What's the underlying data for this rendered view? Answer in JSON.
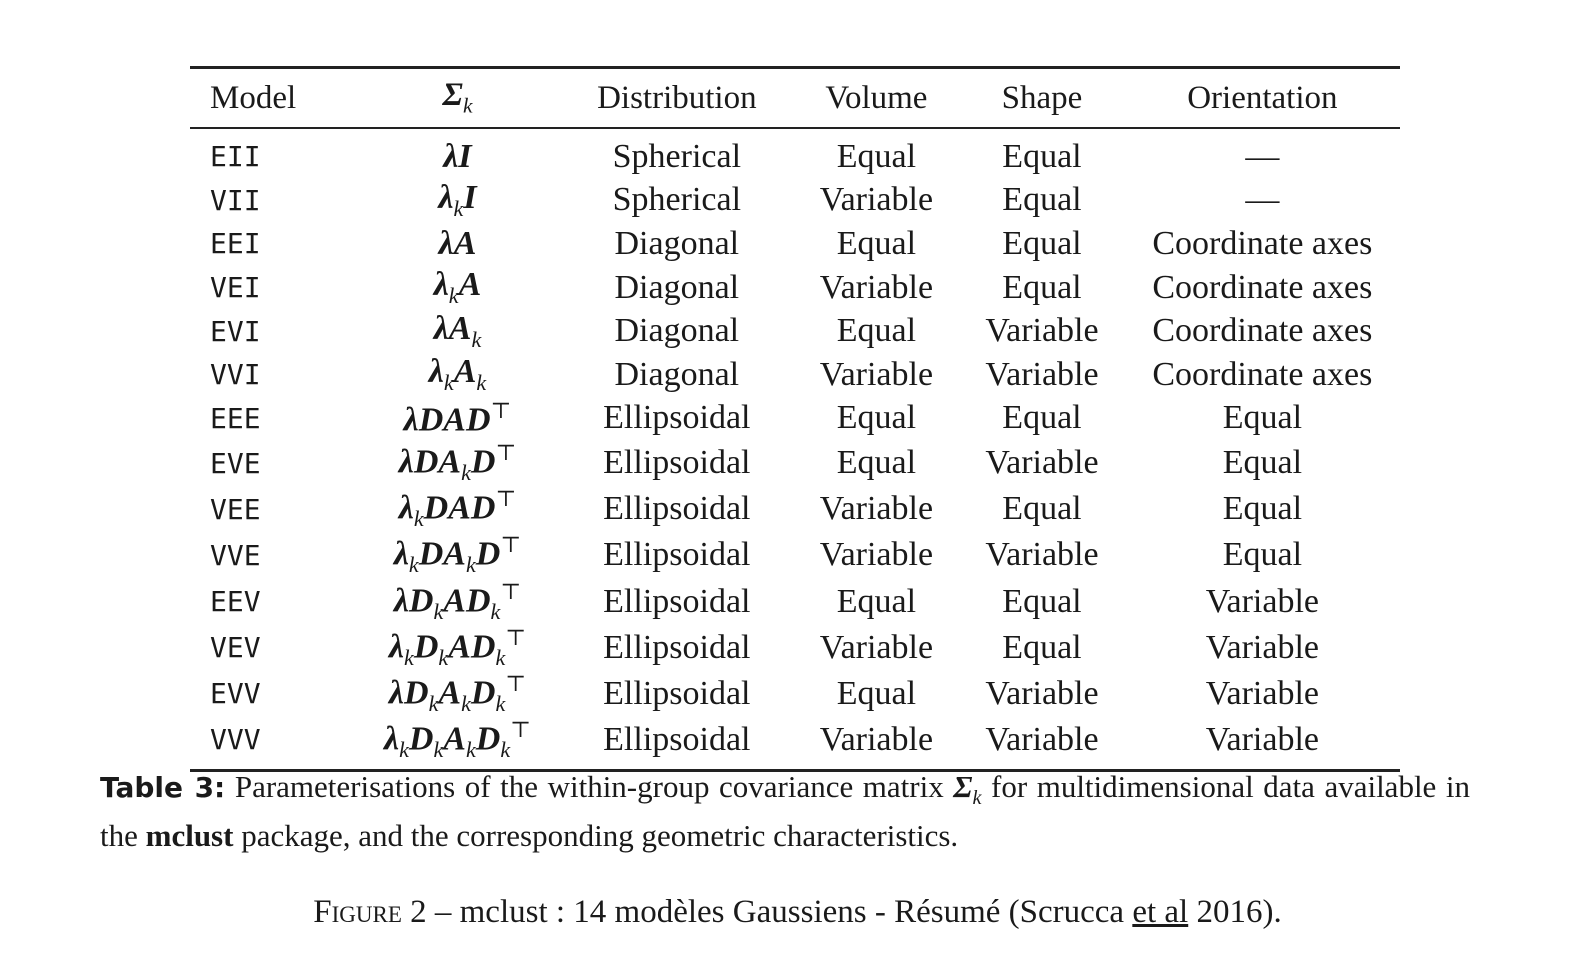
{
  "table": {
    "headers": {
      "model": "Model",
      "sigma": "Σ_k",
      "distribution": "Distribution",
      "volume": "Volume",
      "shape": "Shape",
      "orientation": "Orientation"
    },
    "rows": [
      {
        "model": "EII",
        "sigma": "λI",
        "distribution": "Spherical",
        "volume": "Equal",
        "shape": "Equal",
        "orientation": "—"
      },
      {
        "model": "VII",
        "sigma": "λ_kI",
        "distribution": "Spherical",
        "volume": "Variable",
        "shape": "Equal",
        "orientation": "—"
      },
      {
        "model": "EEI",
        "sigma": "λA",
        "distribution": "Diagonal",
        "volume": "Equal",
        "shape": "Equal",
        "orientation": "Coordinate axes"
      },
      {
        "model": "VEI",
        "sigma": "λ_kA",
        "distribution": "Diagonal",
        "volume": "Variable",
        "shape": "Equal",
        "orientation": "Coordinate axes"
      },
      {
        "model": "EVI",
        "sigma": "λA_k",
        "distribution": "Diagonal",
        "volume": "Equal",
        "shape": "Variable",
        "orientation": "Coordinate axes"
      },
      {
        "model": "VVI",
        "sigma": "λ_kA_k",
        "distribution": "Diagonal",
        "volume": "Variable",
        "shape": "Variable",
        "orientation": "Coordinate axes"
      },
      {
        "model": "EEE",
        "sigma": "λDAD^⊤",
        "distribution": "Ellipsoidal",
        "volume": "Equal",
        "shape": "Equal",
        "orientation": "Equal"
      },
      {
        "model": "EVE",
        "sigma": "λDA_kD^⊤",
        "distribution": "Ellipsoidal",
        "volume": "Equal",
        "shape": "Variable",
        "orientation": "Equal"
      },
      {
        "model": "VEE",
        "sigma": "λ_kDAD^⊤",
        "distribution": "Ellipsoidal",
        "volume": "Variable",
        "shape": "Equal",
        "orientation": "Equal"
      },
      {
        "model": "VVE",
        "sigma": "λ_kDA_kD^⊤",
        "distribution": "Ellipsoidal",
        "volume": "Variable",
        "shape": "Variable",
        "orientation": "Equal"
      },
      {
        "model": "EEV",
        "sigma": "λD_kAD_k^⊤",
        "distribution": "Ellipsoidal",
        "volume": "Equal",
        "shape": "Equal",
        "orientation": "Variable"
      },
      {
        "model": "VEV",
        "sigma": "λ_kD_kAD_k^⊤",
        "distribution": "Ellipsoidal",
        "volume": "Variable",
        "shape": "Equal",
        "orientation": "Variable"
      },
      {
        "model": "EVV",
        "sigma": "λD_kA_kD_k^⊤",
        "distribution": "Ellipsoidal",
        "volume": "Equal",
        "shape": "Variable",
        "orientation": "Variable"
      },
      {
        "model": "VVV",
        "sigma": "λ_kD_kA_kD_k^⊤",
        "distribution": "Ellipsoidal",
        "volume": "Variable",
        "shape": "Variable",
        "orientation": "Variable"
      }
    ]
  },
  "caption": {
    "label": "Table 3:",
    "part1": "Parameterisations of the within-group covariance matrix",
    "sigma": "Σ_k",
    "part2": "for multidimensional data available in the",
    "package": "mclust",
    "part3": "package, and the corresponding geometric characteristics."
  },
  "figure_caption": {
    "label": "Figure 2",
    "dash": "–",
    "text_before": "mclust : 14 modèles Gaussiens - Résumé (Scrucca",
    "underlined": "et al",
    "text_after": "2016)."
  }
}
